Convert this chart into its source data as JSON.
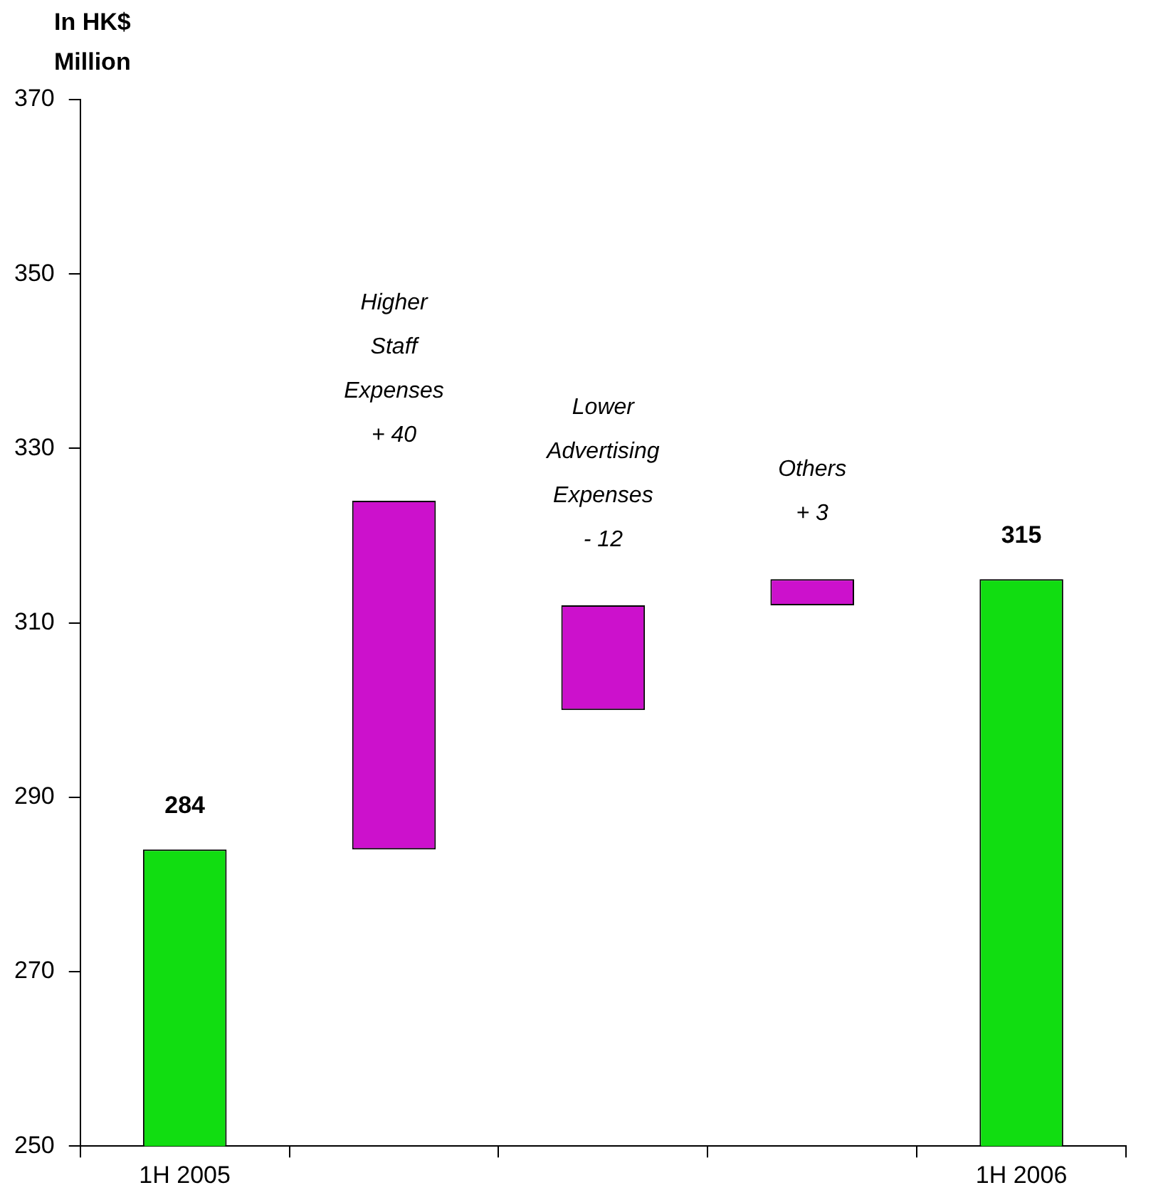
{
  "chart_data": {
    "type": "bar",
    "ylabel": "In HK$\nMillion",
    "categories": [
      "1H 2005",
      null,
      null,
      null,
      "1H 2006"
    ],
    "values": [
      284,
      40,
      -12,
      3,
      315
    ],
    "base": [
      null,
      284,
      312,
      312,
      null
    ],
    "colors": [
      "#11dd11",
      "#cc11cc",
      "#cc11cc",
      "#cc11cc",
      "#11dd11"
    ],
    "value_labels": [
      "284",
      "Higher\nStaff\nExpenses\n+ 40",
      "Lower\nAdvertising\nExpenses\n- 12",
      "Others\n+ 3",
      "315"
    ],
    "ylim": [
      250,
      370
    ],
    "yticks": [
      250,
      270,
      290,
      310,
      330,
      350,
      370
    ],
    "grid": false,
    "legend": false
  }
}
